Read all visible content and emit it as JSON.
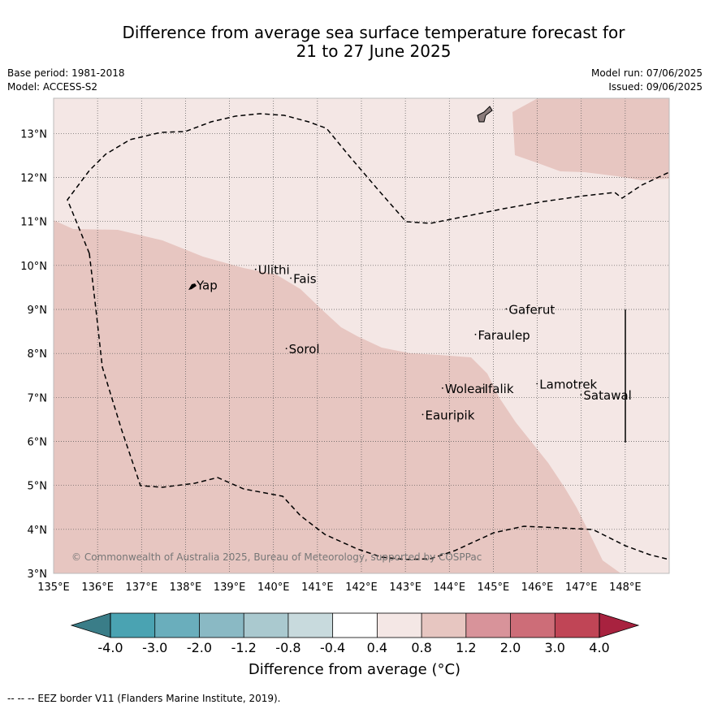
{
  "title": {
    "line1": "Difference from average sea surface temperature forecast for",
    "line2": "21 to 27 June 2025"
  },
  "meta": {
    "base_period": "Base period: 1981-2018",
    "model": "Model: ACCESS-S2",
    "model_run": "Model run: 07/06/2025",
    "issued": "Issued: 09/06/2025"
  },
  "map": {
    "lon_range": [
      135,
      149
    ],
    "lat_range": [
      3,
      13.8
    ],
    "lon_ticks": [
      "135°E",
      "136°E",
      "137°E",
      "138°E",
      "139°E",
      "140°E",
      "141°E",
      "142°E",
      "143°E",
      "144°E",
      "145°E",
      "146°E",
      "147°E",
      "148°E"
    ],
    "lat_ticks": [
      "3°N",
      "4°N",
      "5°N",
      "6°N",
      "7°N",
      "8°N",
      "9°N",
      "10°N",
      "11°N",
      "12°N",
      "13°N"
    ],
    "background_category": "0.4 to 0.8",
    "places": [
      {
        "name": "Yap",
        "lon": 138.25,
        "lat": 9.45
      },
      {
        "name": "Ulithi",
        "lon": 139.65,
        "lat": 9.8
      },
      {
        "name": "Fais",
        "lon": 140.45,
        "lat": 9.6
      },
      {
        "name": "Sorol",
        "lon": 140.35,
        "lat": 8.0
      },
      {
        "name": "Gaferut",
        "lon": 145.35,
        "lat": 8.9
      },
      {
        "name": "Faraulep",
        "lon": 144.65,
        "lat": 8.32
      },
      {
        "name": "Woleai",
        "lon": 143.9,
        "lat": 7.1
      },
      {
        "name": "Ifalik",
        "lon": 144.8,
        "lat": 7.1
      },
      {
        "name": "Lamotrek",
        "lon": 146.05,
        "lat": 7.2
      },
      {
        "name": "Satawal",
        "lon": 147.05,
        "lat": 6.95
      },
      {
        "name": "Eauripik",
        "lon": 143.45,
        "lat": 6.5
      }
    ],
    "copyright": "© Commonwealth of Australia 2025, Bureau of Meteorology, supported by COSPPac"
  },
  "colorbar": {
    "label": "Difference from average (°C)",
    "ticks": [
      "-4.0",
      "-3.0",
      "-2.0",
      "-1.2",
      "-0.8",
      "-0.4",
      "0.4",
      "0.8",
      "1.2",
      "2.0",
      "3.0",
      "4.0"
    ],
    "colors": [
      "#3a7d88",
      "#4aa3b2",
      "#6aaebc",
      "#8ab9c4",
      "#aac9cf",
      "#c8dadd",
      "#ffffff",
      "#f4e7e5",
      "#e7c6c1",
      "#d8939a",
      "#cd6d78",
      "#c04556",
      "#a8223f"
    ]
  },
  "footer": "--  --  -- EEZ border V11 (Flanders Marine Institute, 2019)."
}
